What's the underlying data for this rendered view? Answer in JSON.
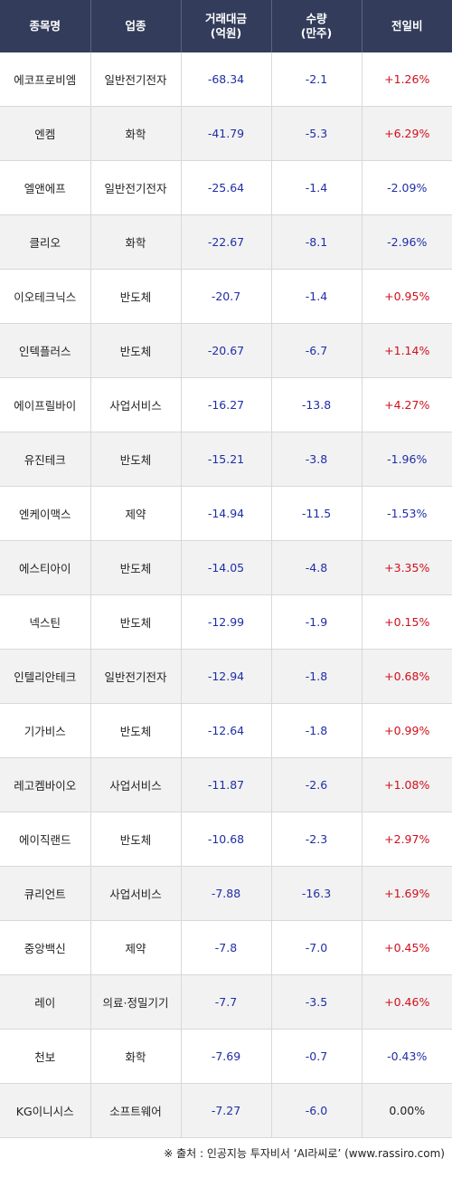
{
  "headers": {
    "name": "종목명",
    "sector": "업종",
    "amount_line1": "거래대금",
    "amount_line2": "(억원)",
    "volume_line1": "수량",
    "volume_line2": "(만주)",
    "change": "전일비"
  },
  "colors": {
    "header_bg": "#333c5a",
    "positive": "#d0101c",
    "negative": "#1f2ea6",
    "row_alt_bg": "#f2f2f2"
  },
  "rows": [
    {
      "name": "에코프로비엠",
      "sector": "일반전기전자",
      "amount": "-68.34",
      "volume": "-2.1",
      "change": "+1.26%"
    },
    {
      "name": "엔켐",
      "sector": "화학",
      "amount": "-41.79",
      "volume": "-5.3",
      "change": "+6.29%"
    },
    {
      "name": "엘앤에프",
      "sector": "일반전기전자",
      "amount": "-25.64",
      "volume": "-1.4",
      "change": "-2.09%"
    },
    {
      "name": "클리오",
      "sector": "화학",
      "amount": "-22.67",
      "volume": "-8.1",
      "change": "-2.96%"
    },
    {
      "name": "이오테크닉스",
      "sector": "반도체",
      "amount": "-20.7",
      "volume": "-1.4",
      "change": "+0.95%"
    },
    {
      "name": "인텍플러스",
      "sector": "반도체",
      "amount": "-20.67",
      "volume": "-6.7",
      "change": "+1.14%"
    },
    {
      "name": "에이프릴바이",
      "sector": "사업서비스",
      "amount": "-16.27",
      "volume": "-13.8",
      "change": "+4.27%"
    },
    {
      "name": "유진테크",
      "sector": "반도체",
      "amount": "-15.21",
      "volume": "-3.8",
      "change": "-1.96%"
    },
    {
      "name": "엔케이맥스",
      "sector": "제약",
      "amount": "-14.94",
      "volume": "-11.5",
      "change": "-1.53%"
    },
    {
      "name": "에스티아이",
      "sector": "반도체",
      "amount": "-14.05",
      "volume": "-4.8",
      "change": "+3.35%"
    },
    {
      "name": "넥스틴",
      "sector": "반도체",
      "amount": "-12.99",
      "volume": "-1.9",
      "change": "+0.15%"
    },
    {
      "name": "인텔리안테크",
      "sector": "일반전기전자",
      "amount": "-12.94",
      "volume": "-1.8",
      "change": "+0.68%"
    },
    {
      "name": "기가비스",
      "sector": "반도체",
      "amount": "-12.64",
      "volume": "-1.8",
      "change": "+0.99%"
    },
    {
      "name": "레고켐바이오",
      "sector": "사업서비스",
      "amount": "-11.87",
      "volume": "-2.6",
      "change": "+1.08%"
    },
    {
      "name": "에이직랜드",
      "sector": "반도체",
      "amount": "-10.68",
      "volume": "-2.3",
      "change": "+2.97%"
    },
    {
      "name": "큐리언트",
      "sector": "사업서비스",
      "amount": "-7.88",
      "volume": "-16.3",
      "change": "+1.69%"
    },
    {
      "name": "중앙백신",
      "sector": "제약",
      "amount": "-7.8",
      "volume": "-7.0",
      "change": "+0.45%"
    },
    {
      "name": "레이",
      "sector": "의료·정밀기기",
      "amount": "-7.7",
      "volume": "-3.5",
      "change": "+0.46%"
    },
    {
      "name": "천보",
      "sector": "화학",
      "amount": "-7.69",
      "volume": "-0.7",
      "change": "-0.43%"
    },
    {
      "name": "KG이니시스",
      "sector": "소프트웨어",
      "amount": "-7.27",
      "volume": "-6.0",
      "change": "0.00%"
    }
  ],
  "footer": "※ 출처 : 인공지능 투자비서 ‘AI라씨로’ (www.rassiro.com)"
}
